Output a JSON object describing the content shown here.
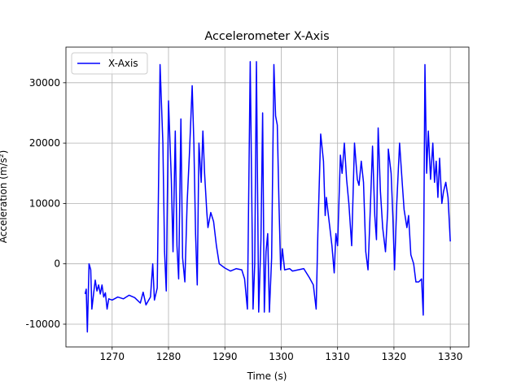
{
  "chart_data": {
    "type": "line",
    "title": "Accelerometer X-Axis",
    "xlabel": "Time (s)",
    "ylabel": "Acceleration (m/s²)",
    "x": [
      1265.2,
      1265.4,
      1265.6,
      1265.9,
      1266.2,
      1266.4,
      1266.7,
      1267,
      1267.3,
      1267.6,
      1267.9,
      1268.2,
      1268.5,
      1268.8,
      1269.1,
      1269.4,
      1270,
      1271,
      1272,
      1273,
      1274,
      1275,
      1275.5,
      1276,
      1276.8,
      1277.2,
      1277.5,
      1278,
      1278.5,
      1279,
      1279.3,
      1279.6,
      1280,
      1280.5,
      1280.8,
      1281.2,
      1281.5,
      1281.8,
      1282.2,
      1282.5,
      1282.9,
      1283.3,
      1283.7,
      1284.2,
      1284.5,
      1284.8,
      1285.1,
      1285.4,
      1285.8,
      1286.1,
      1286.4,
      1286.8,
      1287,
      1287.5,
      1288,
      1288.5,
      1289,
      1290,
      1291,
      1292,
      1293,
      1293.5,
      1294,
      1294.5,
      1295,
      1295.3,
      1295.6,
      1296,
      1296.4,
      1296.7,
      1297,
      1297.3,
      1297.6,
      1297.9,
      1298.3,
      1298.7,
      1299,
      1299.3,
      1299.6,
      1299.9,
      1300.2,
      1300.6,
      1301.5,
      1302,
      1303,
      1304,
      1305,
      1305.7,
      1306.2,
      1306.5,
      1307,
      1307.5,
      1307.8,
      1308,
      1308.5,
      1309,
      1309.4,
      1309.7,
      1310,
      1310.5,
      1310.8,
      1311.2,
      1311.6,
      1312,
      1312.5,
      1313,
      1313.5,
      1313.8,
      1314.2,
      1314.6,
      1315,
      1315.4,
      1315.8,
      1316.2,
      1316.6,
      1316.9,
      1317.2,
      1317.6,
      1318,
      1318.5,
      1318.9,
      1319,
      1319.5,
      1319.8,
      1320.1,
      1320.5,
      1321,
      1321.5,
      1321.8,
      1322.3,
      1322.6,
      1323,
      1323.5,
      1323.9,
      1324.4,
      1324.9,
      1325.2,
      1325.5,
      1325.8,
      1326.1,
      1326.5,
      1326.9,
      1327.2,
      1327.5,
      1327.8,
      1328.1,
      1328.5,
      1328.8,
      1329.2,
      1329.6,
      1330
    ],
    "series": [
      {
        "name": "X-Axis",
        "color": "#0000ff",
        "values": [
          -5000,
          -4200,
          -11300,
          0,
          -1000,
          -7500,
          -5000,
          -2700,
          -4500,
          -3500,
          -5000,
          -3500,
          -5500,
          -4800,
          -7500,
          -5800,
          -6000,
          -5500,
          -5800,
          -5200,
          -5600,
          -6500,
          -4700,
          -6800,
          -5500,
          0,
          -6000,
          -4000,
          33000,
          20000,
          2000,
          -4500,
          27000,
          14000,
          2000,
          22000,
          3000,
          -2500,
          24000,
          1000,
          -3000,
          10000,
          18000,
          29500,
          20000,
          5000,
          -3500,
          20000,
          13500,
          22000,
          15000,
          8500,
          6000,
          8500,
          7000,
          3000,
          0,
          -700,
          -1200,
          -800,
          -1000,
          -2500,
          -7500,
          33500,
          -7500,
          0,
          33500,
          -8000,
          4000,
          25000,
          -8000,
          2000,
          5000,
          -8000,
          1000,
          33000,
          24500,
          23000,
          10000,
          -1000,
          2500,
          -1000,
          -800,
          -1200,
          -1000,
          -800,
          -2300,
          -3500,
          -7500,
          5000,
          21500,
          17000,
          8000,
          11000,
          7000,
          3000,
          -1500,
          5000,
          3000,
          18000,
          15000,
          20000,
          14000,
          10000,
          3000,
          20000,
          14000,
          13000,
          17000,
          13500,
          2000,
          -1000,
          9000,
          19500,
          8000,
          4000,
          22500,
          12000,
          6000,
          2000,
          9000,
          19000,
          15000,
          8000,
          -1000,
          10000,
          20000,
          13000,
          9000,
          6000,
          8000,
          1500,
          0,
          -3000,
          -3000,
          -2500,
          -8500,
          33000,
          15000,
          22000,
          14000,
          20000,
          13500,
          17000,
          11000,
          17500,
          10000,
          12000,
          13500,
          11000,
          3700
        ]
      }
    ],
    "xlim": [
      1261.8,
      1333.3
    ],
    "ylim": [
      -13770,
      35900
    ],
    "xticks": [
      1270,
      1280,
      1290,
      1300,
      1310,
      1320,
      1330
    ],
    "yticks": [
      -10000,
      0,
      10000,
      20000,
      30000
    ],
    "grid": true,
    "legend": "upper-left"
  }
}
